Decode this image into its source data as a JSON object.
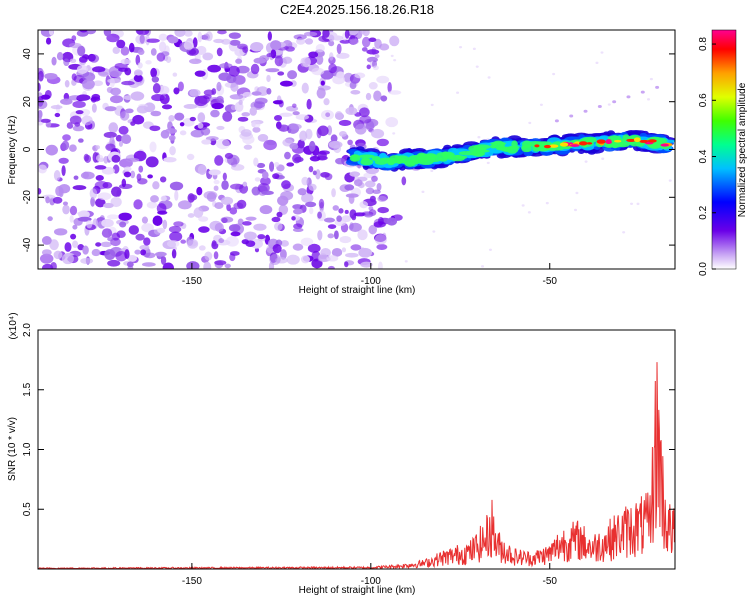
{
  "title": "C2E4.2025.156.18.26.R18",
  "chart_data": [
    {
      "type": "heatmap",
      "xlabel": "Height of straight line (km)",
      "ylabel": "Frequency (Hz)",
      "xlim": [
        -193,
        -15
      ],
      "ylim": [
        -50,
        50
      ],
      "x_ticks": [
        -150,
        -100,
        -50
      ],
      "y_ticks": [
        -40,
        -20,
        0,
        20,
        40
      ],
      "colorbar": {
        "label": "Normalized spectral amplitude",
        "range": [
          0,
          0.85
        ],
        "ticks": [
          "0.0",
          "0.2",
          "0.4",
          "0.6",
          "0.8"
        ],
        "colors": [
          "#ffffff",
          "#b060f0",
          "#6a00e8",
          "#0000ff",
          "#00c0ff",
          "#00ff90",
          "#40ff00",
          "#e0ff00",
          "#ffa000",
          "#ff0000",
          "#ff0090"
        ]
      },
      "signal_track": {
        "x": [
          -105,
          -95,
          -85,
          -75,
          -65,
          -55,
          -45,
          -35,
          -25,
          -17
        ],
        "freq": [
          -3,
          -5,
          -4,
          -2,
          1,
          1,
          2,
          3,
          4,
          2
        ]
      },
      "noise_region_x": [
        -193,
        -96
      ]
    },
    {
      "type": "line",
      "xlabel": "Height of straight line (km)",
      "ylabel": "SNR (10 * v/v)",
      "y_multiplier": "(x10⁴)",
      "xlim": [
        -193,
        -15
      ],
      "ylim": [
        0,
        2.0
      ],
      "x_ticks": [
        -150,
        -100,
        -50
      ],
      "y_ticks": [
        "0.5",
        "1.0",
        "1.5",
        "2.0"
      ],
      "color": "#e83030",
      "envelope": {
        "x": [
          -193,
          -100,
          -92,
          -85,
          -80,
          -72,
          -68,
          -66,
          -65,
          -60,
          -55,
          -50,
          -47,
          -42,
          -38,
          -34,
          -30,
          -26,
          -22,
          -20,
          -19,
          -18,
          -17,
          -15
        ],
        "y": [
          0.01,
          0.02,
          0.04,
          0.08,
          0.16,
          0.25,
          0.42,
          0.62,
          0.35,
          0.18,
          0.15,
          0.22,
          0.36,
          0.42,
          0.3,
          0.4,
          0.52,
          0.6,
          0.65,
          2.0,
          1.4,
          0.8,
          0.6,
          0.5
        ]
      }
    }
  ]
}
